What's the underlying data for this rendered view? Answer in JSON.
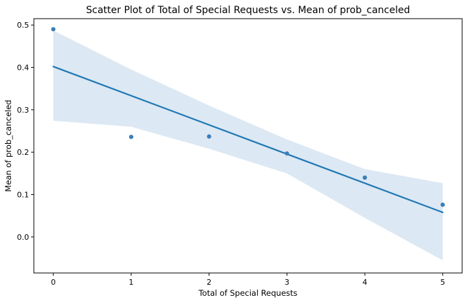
{
  "chart_data": {
    "type": "scatter",
    "title": "Scatter Plot of Total of Special Requests vs. Mean of prob_canceled",
    "xlabel": "Total of Special Requests",
    "ylabel": "Mean of prob_canceled",
    "xlim": [
      -0.25,
      5.25
    ],
    "ylim": [
      -0.085,
      0.515
    ],
    "x_ticks": [
      0,
      1,
      2,
      3,
      4,
      5
    ],
    "x_tick_labels": [
      "0",
      "1",
      "2",
      "3",
      "4",
      "5"
    ],
    "y_ticks": [
      0.0,
      0.1,
      0.2,
      0.3,
      0.4,
      0.5
    ],
    "y_tick_labels": [
      "0.0",
      "0.1",
      "0.2",
      "0.3",
      "0.4",
      "0.5"
    ],
    "grid": false,
    "legend": "none",
    "points": {
      "x": [
        0,
        1,
        2,
        3,
        4,
        5
      ],
      "y": [
        0.49,
        0.236,
        0.237,
        0.197,
        0.14,
        0.076
      ]
    },
    "regression": {
      "x": [
        0,
        5
      ],
      "y": [
        0.402,
        0.058
      ]
    },
    "confidence_band": {
      "x": [
        0,
        1,
        2,
        3,
        4,
        5
      ],
      "upper": [
        0.487,
        0.395,
        0.31,
        0.23,
        0.16,
        0.127
      ],
      "lower": [
        0.274,
        0.26,
        0.208,
        0.15,
        0.045,
        -0.055
      ]
    },
    "colors": {
      "point": "#3a7fb8",
      "line": "#1f77b4",
      "band": "#dce8f3"
    }
  }
}
